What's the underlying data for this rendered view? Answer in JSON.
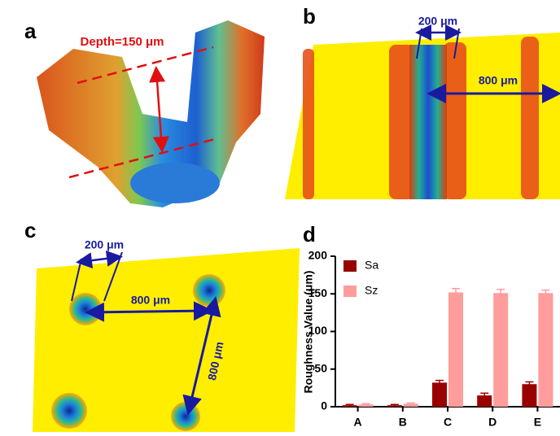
{
  "panels": {
    "a": {
      "label": "a",
      "depth": "Depth=150 μm"
    },
    "b": {
      "label": "b",
      "width": "200 μm",
      "spacing": "800 μm"
    },
    "c": {
      "label": "c",
      "width": "200 μm",
      "spacing_x": "800 μm",
      "spacing_y": "800 μm"
    },
    "d": {
      "label": "d"
    }
  },
  "chart_data": {
    "type": "bar",
    "ylabel": "Roughness Value (μm)",
    "categories": [
      "A",
      "B",
      "C",
      "D",
      "E"
    ],
    "series": [
      {
        "name": "Sa",
        "color": "#990000",
        "values": [
          2,
          2,
          32,
          15,
          30
        ],
        "errors": [
          1,
          1,
          3,
          3,
          3
        ]
      },
      {
        "name": "Sz",
        "color": "#ff9c9c",
        "values": [
          3,
          4,
          152,
          151,
          151
        ],
        "errors": [
          1,
          1,
          5,
          5,
          4
        ]
      }
    ],
    "ylim": [
      0,
      200
    ],
    "yticks": [
      0,
      50,
      100,
      150,
      200
    ],
    "legend": "upper-left"
  }
}
